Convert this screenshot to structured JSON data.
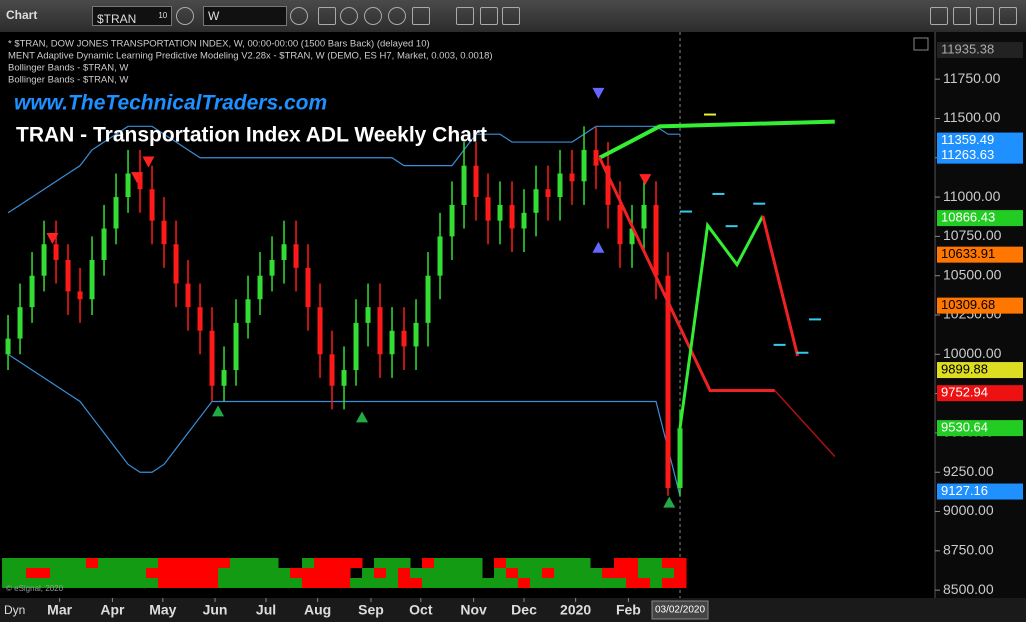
{
  "toolbar": {
    "app": "Chart",
    "symbol": "$TRAN",
    "symbol_sup": "10",
    "interval": "W"
  },
  "chart_data": {
    "type": "ohlc",
    "legend_lines": [
      "* $TRAN, DOW JONES TRANSPORTATION INDEX, W, 00:00-00:00 (1500 Bars Back) (delayed 10)",
      "MENT Adaptive Dynamic Learning Predictive Modeling V2.28x - $TRAN, W (DEMO, ES H7, Market, 0.003, 0.0018)",
      "Bollinger Bands - $TRAN, W",
      "Bollinger Bands - $TRAN, W"
    ],
    "subtitle": "www.TheTechnicalTraders.com",
    "title": "TRAN - Transportation Index ADL Weekly Chart",
    "copyright": "© eSignal, 2020",
    "corner_label": "Dyn",
    "up_color": "#33dd33",
    "down_color": "#ff1a1a",
    "open": [
      10000,
      10100,
      10300,
      10500,
      10700,
      10600,
      10400,
      10350,
      10600,
      10800,
      11000,
      11150,
      11050,
      10850,
      10700,
      10450,
      10300,
      10150,
      9800,
      9900,
      10200,
      10350,
      10500,
      10600,
      10700,
      10550,
      10300,
      10000,
      9800,
      9900,
      10200,
      10300,
      10000,
      10150,
      10050,
      10200,
      10500,
      10750,
      10950,
      11200,
      11000,
      10850,
      10950,
      10800,
      10900,
      11050,
      11000,
      11150,
      11100,
      11300,
      11200,
      10950,
      10700,
      10800,
      10950,
      10500,
      9150
    ],
    "high": [
      10250,
      10450,
      10650,
      10850,
      10850,
      10700,
      10550,
      10750,
      10950,
      11150,
      11300,
      11300,
      11200,
      11000,
      10850,
      10600,
      10450,
      10300,
      10050,
      10350,
      10500,
      10650,
      10750,
      10850,
      10850,
      10700,
      10450,
      10150,
      10050,
      10350,
      10450,
      10450,
      10300,
      10300,
      10350,
      10650,
      10900,
      11100,
      11350,
      11350,
      11150,
      11100,
      11100,
      11050,
      11200,
      11200,
      11300,
      11300,
      11450,
      11450,
      11350,
      11100,
      10950,
      11100,
      11100,
      10650,
      9650
    ],
    "low": [
      9900,
      10000,
      10200,
      10400,
      10450,
      10250,
      10200,
      10250,
      10500,
      10700,
      10900,
      10900,
      10700,
      10550,
      10300,
      10150,
      10000,
      9700,
      9700,
      9800,
      10100,
      10250,
      10400,
      10450,
      10400,
      10150,
      9850,
      9650,
      9650,
      9800,
      10050,
      9850,
      9850,
      9900,
      9900,
      10050,
      10350,
      10600,
      10800,
      10850,
      10700,
      10700,
      10650,
      10650,
      10750,
      10850,
      10850,
      10950,
      10950,
      11050,
      10800,
      10550,
      10550,
      10650,
      10350,
      9100,
      9100
    ],
    "close": [
      10100,
      10300,
      10500,
      10700,
      10600,
      10400,
      10350,
      10600,
      10800,
      11000,
      11150,
      11050,
      10850,
      10700,
      10450,
      10300,
      10150,
      9800,
      9900,
      10200,
      10350,
      10500,
      10600,
      10700,
      10550,
      10300,
      10000,
      9800,
      9900,
      10200,
      10300,
      10000,
      10150,
      10050,
      10200,
      10500,
      10750,
      10950,
      11200,
      11000,
      10850,
      10950,
      10800,
      10900,
      11050,
      11000,
      11150,
      11100,
      11300,
      11200,
      10950,
      10700,
      10800,
      10950,
      10500,
      9150,
      9530
    ],
    "overlays": [
      {
        "color": "#3a8fd8",
        "values": [
          10900,
          10950,
          11000,
          11050,
          11100,
          11150,
          11200,
          11300,
          11350,
          11400,
          11450,
          11450,
          11450,
          11400,
          11350,
          11300,
          11250,
          11250,
          11250,
          11250,
          11250,
          11250,
          11250,
          11250,
          11250,
          11250,
          11250,
          11250,
          11250,
          11250,
          11250,
          11250,
          11250,
          11200,
          11200,
          11200,
          11200,
          11200,
          11300,
          11400,
          11400,
          11400,
          11350,
          11350,
          11350,
          11350,
          11350,
          11350,
          11400,
          11450,
          11450,
          11450,
          11450,
          11450,
          11450,
          11400,
          11400
        ]
      },
      {
        "color": "#3a8fd8",
        "values": [
          10000,
          9950,
          9900,
          9850,
          9800,
          9750,
          9700,
          9600,
          9500,
          9400,
          9300,
          9250,
          9250,
          9300,
          9400,
          9500,
          9600,
          9700,
          9700,
          9700,
          9700,
          9700,
          9700,
          9700,
          9700,
          9700,
          9700,
          9700,
          9700,
          9700,
          9700,
          9700,
          9700,
          9700,
          9700,
          9700,
          9700,
          9700,
          9700,
          9700,
          9700,
          9700,
          9700,
          9700,
          9700,
          9700,
          9700,
          9700,
          9700,
          9700,
          9700,
          9700,
          9700,
          9700,
          9700,
          9400,
          9100
        ]
      }
    ],
    "forecasts": [
      {
        "color": "#33ee33",
        "width": 4,
        "x": [
          49.3,
          54.3,
          68.9
        ],
        "values": [
          11250,
          11450,
          11480
        ]
      },
      {
        "color": "#ee2222",
        "width": 3,
        "x": [
          49.3,
          58.5,
          63.9
        ],
        "values": [
          11250,
          9770,
          9770
        ]
      },
      {
        "color": "#aa1111",
        "width": 1.5,
        "x": [
          63.9,
          68.9
        ],
        "values": [
          9770,
          9350
        ]
      },
      {
        "color": "#33ee33",
        "width": 3,
        "x": [
          56,
          58.3,
          60.75,
          62.9
        ],
        "values": [
          9530,
          10820,
          10570,
          10880
        ]
      },
      {
        "color": "#ee2222",
        "width": 3,
        "x": [
          62.9,
          65.8
        ],
        "values": [
          10880,
          9990
        ]
      }
    ],
    "targets": [
      {
        "color": "#33ccee",
        "x": [
          56.5,
          59.2,
          60.3,
          62.6,
          64.3,
          66.2,
          67.25
        ],
        "values": [
          10908,
          11020,
          10815,
          10958,
          10060,
          10010,
          10222
        ]
      },
      {
        "color": "#eeee33",
        "x": [
          58.5
        ],
        "values": [
          11525
        ]
      }
    ],
    "signals": [
      {
        "color": "#ff2222",
        "dir": "down",
        "x": [
          3.7,
          10.75,
          11.7,
          53.1
        ],
        "values": [
          10740,
          11127,
          11226,
          11114
        ]
      },
      {
        "color": "#6666ff",
        "dir": "down",
        "x": [
          49.2
        ],
        "values": [
          11663
        ]
      },
      {
        "color": "#6666ff",
        "dir": "up",
        "x": [
          49.2
        ],
        "values": [
          10678
        ]
      },
      {
        "color": "#22aa44",
        "dir": "up",
        "x": [
          17.5,
          29.5,
          55.1
        ],
        "values": [
          9637,
          9599,
          9057
        ]
      }
    ],
    "price_labels": [
      {
        "value": 11935.38,
        "color": "#222222"
      },
      {
        "value": 11359.49,
        "color": "#1e90ff"
      },
      {
        "value": 11263.63,
        "color": "#1e90ff"
      },
      {
        "value": 10866.43,
        "color": "#22cc22"
      },
      {
        "value": 10633.91,
        "color": "#ff7700"
      },
      {
        "value": 10309.68,
        "color": "#ff7700"
      },
      {
        "value": 9899.88,
        "color": "#dddd22"
      },
      {
        "value": 9752.94,
        "color": "#ee1111"
      },
      {
        "value": 9530.64,
        "color": "#22cc22"
      },
      {
        "value": 9127.16,
        "color": "#1e90ff"
      }
    ],
    "heatmap": {
      "up_color": "#139c13",
      "down_color": "#ff0000",
      "rows": [
        [
          1,
          1,
          1,
          1,
          1,
          1,
          1,
          -1,
          1,
          1,
          1,
          1,
          1,
          -1,
          -1,
          -1,
          -1,
          -1,
          -1,
          1,
          1,
          1,
          1,
          0,
          0,
          1,
          -1,
          -1,
          -1,
          -1,
          0,
          1,
          1,
          1,
          0,
          -1,
          1,
          1,
          1,
          1,
          0,
          -1,
          1,
          1,
          1,
          1,
          1,
          1,
          1,
          0,
          0,
          -1,
          -1,
          1,
          1,
          -1,
          -1
        ],
        [
          1,
          1,
          -1,
          -1,
          1,
          1,
          1,
          1,
          1,
          1,
          1,
          1,
          -1,
          -1,
          -1,
          -1,
          -1,
          -1,
          1,
          1,
          1,
          1,
          1,
          1,
          -1,
          -1,
          -1,
          -1,
          -1,
          0,
          1,
          -1,
          1,
          -1,
          1,
          1,
          1,
          1,
          1,
          1,
          0,
          1,
          -1,
          1,
          1,
          -1,
          1,
          1,
          1,
          1,
          -1,
          -1,
          -1,
          1,
          1,
          1,
          -1
        ],
        [
          1,
          1,
          1,
          1,
          1,
          1,
          1,
          1,
          1,
          1,
          1,
          1,
          1,
          -1,
          -1,
          -1,
          -1,
          -1,
          1,
          1,
          1,
          1,
          1,
          1,
          1,
          -1,
          -1,
          -1,
          -1,
          1,
          1,
          1,
          1,
          -1,
          -1,
          1,
          1,
          1,
          1,
          1,
          1,
          1,
          1,
          -1,
          1,
          1,
          1,
          1,
          1,
          1,
          1,
          1,
          -1,
          -1,
          1,
          -1,
          -1
        ]
      ]
    },
    "ylim": [
      8450,
      12050
    ],
    "yticks": [
      {
        "value": 8500,
        "label": "8500.00"
      },
      {
        "value": 8750,
        "label": "8750.00"
      },
      {
        "value": 9000,
        "label": "9000.00"
      },
      {
        "value": 9250,
        "label": "9250.00"
      },
      {
        "value": 9500,
        "label": "9500.00"
      },
      {
        "value": 9750,
        "label": "9750.00"
      },
      {
        "value": 10000,
        "label": "10000.00"
      },
      {
        "value": 10250,
        "label": "10250.00"
      },
      {
        "value": 10500,
        "label": "10500.00"
      },
      {
        "value": 10750,
        "label": "10750.00"
      },
      {
        "value": 11000,
        "label": "11000.00"
      },
      {
        "value": 11250,
        "label": "11250.00"
      },
      {
        "value": 11500,
        "label": "11500.00"
      },
      {
        "value": 11750,
        "label": "11750.00"
      }
    ],
    "xlim": [
      -0.67,
      77.25
    ],
    "xticks": [
      {
        "value": 4.3,
        "label": "Mar"
      },
      {
        "value": 8.7,
        "label": "Apr"
      },
      {
        "value": 12.9,
        "label": "May"
      },
      {
        "value": 17.25,
        "label": "Jun"
      },
      {
        "value": 21.5,
        "label": "Jul"
      },
      {
        "value": 25.8,
        "label": "Aug"
      },
      {
        "value": 30.25,
        "label": "Sep"
      },
      {
        "value": 34.4,
        "label": "Oct"
      },
      {
        "value": 38.8,
        "label": "Nov"
      },
      {
        "value": 43,
        "label": "Dec"
      },
      {
        "value": 47.3,
        "label": "2020"
      },
      {
        "value": 51.7,
        "label": "Feb"
      }
    ],
    "current_tick": {
      "value": 56,
      "label": "03/02/2020"
    },
    "grid": false
  }
}
